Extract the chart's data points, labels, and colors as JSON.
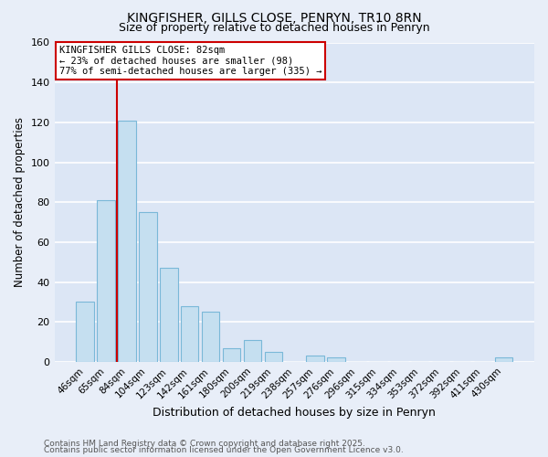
{
  "title": "KINGFISHER, GILLS CLOSE, PENRYN, TR10 8RN",
  "subtitle": "Size of property relative to detached houses in Penryn",
  "xlabel": "Distribution of detached houses by size in Penryn",
  "ylabel": "Number of detached properties",
  "bar_labels": [
    "46sqm",
    "65sqm",
    "84sqm",
    "104sqm",
    "123sqm",
    "142sqm",
    "161sqm",
    "180sqm",
    "200sqm",
    "219sqm",
    "238sqm",
    "257sqm",
    "276sqm",
    "296sqm",
    "315sqm",
    "334sqm",
    "353sqm",
    "372sqm",
    "392sqm",
    "411sqm",
    "430sqm"
  ],
  "bar_values": [
    30,
    81,
    121,
    75,
    47,
    28,
    25,
    7,
    11,
    5,
    0,
    3,
    2,
    0,
    0,
    0,
    0,
    0,
    0,
    0,
    2
  ],
  "bar_color": "#c5dff0",
  "bar_edge_color": "#7ab8d8",
  "vline_color": "#cc0000",
  "ylim": [
    0,
    160
  ],
  "yticks": [
    0,
    20,
    40,
    60,
    80,
    100,
    120,
    140,
    160
  ],
  "annotation_title": "KINGFISHER GILLS CLOSE: 82sqm",
  "annotation_line1": "← 23% of detached houses are smaller (98)",
  "annotation_line2": "77% of semi-detached houses are larger (335) →",
  "box_color": "#ffffff",
  "box_edge_color": "#cc0000",
  "background_color": "#e8eef8",
  "plot_bg_color": "#dce6f5",
  "grid_color": "#ffffff",
  "footer1": "Contains HM Land Registry data © Crown copyright and database right 2025.",
  "footer2": "Contains public sector information licensed under the Open Government Licence v3.0."
}
